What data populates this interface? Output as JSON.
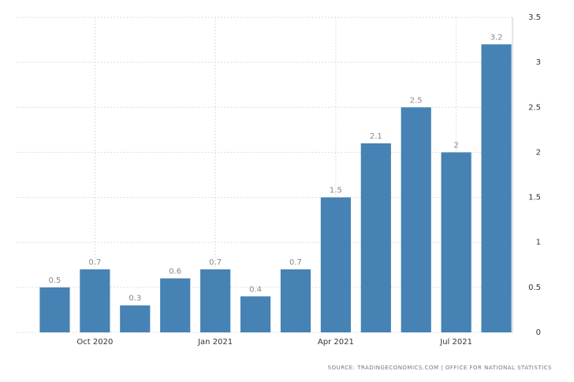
{
  "chart_data": {
    "type": "bar",
    "categories": [
      null,
      "Oct 2020",
      null,
      null,
      "Jan 2021",
      null,
      null,
      "Apr 2021",
      null,
      null,
      "Jul 2021",
      null
    ],
    "values": [
      0.5,
      0.7,
      0.3,
      0.6,
      0.7,
      0.4,
      0.7,
      1.5,
      2.1,
      2.5,
      2,
      3.2
    ],
    "color": "#4682b4",
    "ylim": [
      0,
      3.5
    ],
    "yticks": [
      0,
      0.5,
      1,
      1.5,
      2,
      2.5,
      3,
      3.5
    ],
    "grid": true,
    "y_axis_side": "right",
    "source": "SOURCE: TRADINGECONOMICS.COM | OFFICE FOR NATIONAL STATISTICS"
  }
}
